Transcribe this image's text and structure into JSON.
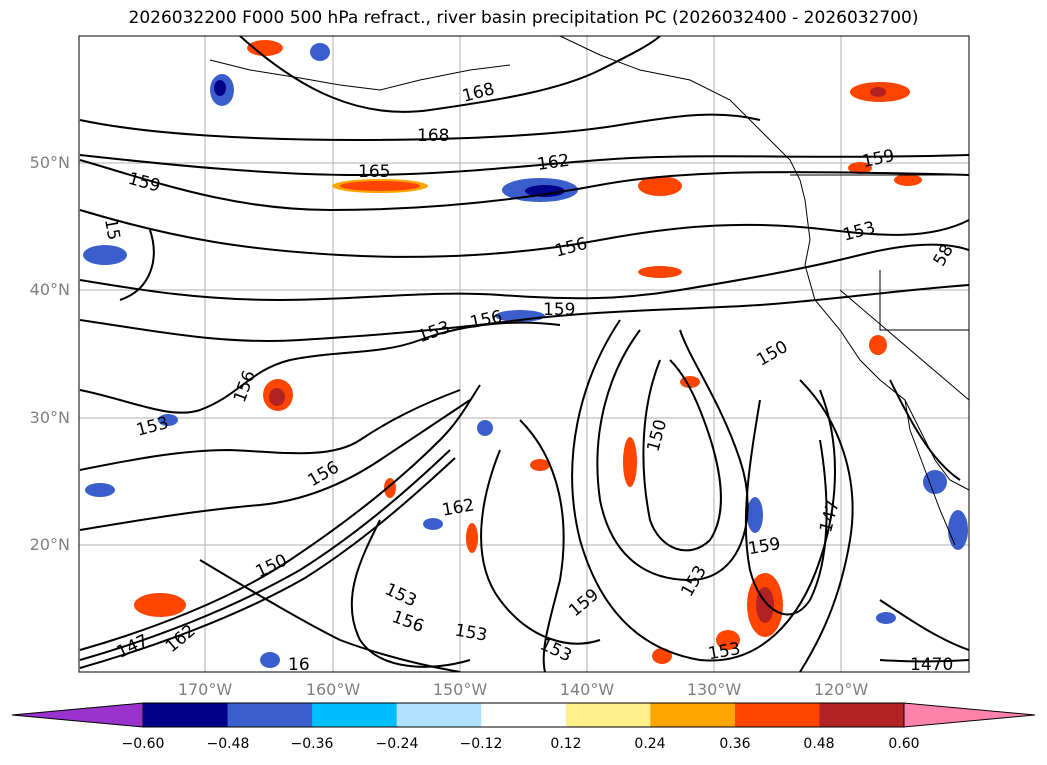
{
  "title": "2026032200 F000 500 hPa refract., river basin precipitation PC (2026032400 - 2026032700)",
  "map": {
    "lat_labels": [
      "50°N",
      "40°N",
      "30°N",
      "20°N"
    ],
    "lon_labels": [
      "170°W",
      "160°W",
      "150°W",
      "140°W",
      "130°W",
      "120°W"
    ],
    "contour_labels": [
      {
        "text": "168"
      },
      {
        "text": "168"
      },
      {
        "text": "165"
      },
      {
        "text": "162"
      },
      {
        "text": "159"
      },
      {
        "text": "159"
      },
      {
        "text": "156"
      },
      {
        "text": "153"
      },
      {
        "text": "156"
      },
      {
        "text": "159"
      },
      {
        "text": "153"
      },
      {
        "text": "156"
      },
      {
        "text": "153"
      },
      {
        "text": "156"
      },
      {
        "text": "150"
      },
      {
        "text": "150"
      },
      {
        "text": "162"
      },
      {
        "text": "153"
      },
      {
        "text": "159"
      },
      {
        "text": "153"
      },
      {
        "text": "156"
      },
      {
        "text": "153"
      },
      {
        "text": "162"
      },
      {
        "text": "147"
      },
      {
        "text": "153"
      },
      {
        "text": "159"
      },
      {
        "text": "147"
      },
      {
        "text": "153"
      },
      {
        "text": "1470"
      },
      {
        "text": "150"
      },
      {
        "text": "15"
      },
      {
        "text": "58"
      },
      {
        "text": "16"
      }
    ]
  },
  "colorbar": {
    "colors": [
      "#9a32cd",
      "#00008b",
      "#3a5fcd",
      "#00bfff",
      "#b0e2ff",
      "#ffffff",
      "#fff08c",
      "#ffa500",
      "#ff4500",
      "#b22222",
      "#ff82ab"
    ],
    "labels": [
      "−0.60",
      "−0.48",
      "−0.36",
      "−0.24",
      "−0.12",
      "0.12",
      "0.24",
      "0.36",
      "0.48",
      "0.60"
    ]
  }
}
